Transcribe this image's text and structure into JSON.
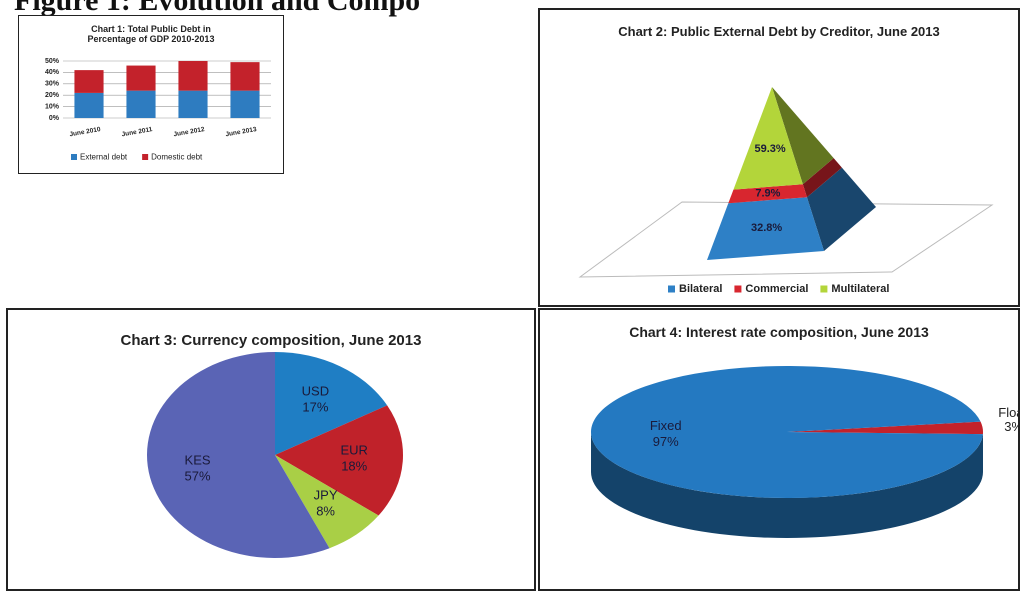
{
  "heading": "Figure 1: Evolution and Compo",
  "chart_data": [
    {
      "type": "bar",
      "stacked": true,
      "title": "Chart 1: Total Public Debt in Percentage of GDP 2010-2013",
      "categories": [
        "June 2010",
        "June 2011",
        "June 2012",
        "June 2013"
      ],
      "series": [
        {
          "name": "External debt",
          "color": "#2e7cc0",
          "values": [
            22,
            24,
            24,
            24
          ]
        },
        {
          "name": "Domestic debt",
          "color": "#c3222b",
          "values": [
            20,
            22,
            26,
            25
          ]
        }
      ],
      "ylim": [
        0,
        50
      ],
      "yticks": [
        {
          "value": 0,
          "label": "0%"
        },
        {
          "value": 10,
          "label": "10%"
        },
        {
          "value": 20,
          "label": "20%"
        },
        {
          "value": 30,
          "label": "30%"
        },
        {
          "value": 40,
          "label": "40%"
        },
        {
          "value": 50,
          "label": "50%"
        }
      ],
      "grid": true,
      "legend": "bottom"
    },
    {
      "type": "pyramid",
      "title": "Chart 2: Public External Debt by Creditor, June 2013",
      "categories": [
        "Bilateral",
        "Commercial",
        "Multilateral"
      ],
      "values": [
        32.8,
        7.9,
        59.3
      ],
      "value_labels": [
        "32.8%",
        "7.9%",
        "59.3%"
      ],
      "colors": [
        "#2e80c6",
        "#d8262f",
        "#b3d53a"
      ],
      "legend": "bottom"
    },
    {
      "type": "pie",
      "title": "Chart 3: Currency composition, June 2013",
      "categories": [
        "USD",
        "EUR",
        "JPY",
        "KES"
      ],
      "values": [
        17,
        18,
        8,
        57
      ],
      "value_labels": [
        "17%",
        "18%",
        "8%",
        "57%"
      ],
      "colors": [
        "#1f7ec4",
        "#c0222a",
        "#a9cf46",
        "#5a64b5"
      ]
    },
    {
      "type": "pie3d",
      "title": "Chart 4: Interest rate composition, June 2013",
      "categories": [
        "Floating",
        "Fixed"
      ],
      "values": [
        3,
        97
      ],
      "value_labels": [
        "3%",
        "97%"
      ],
      "colors": [
        "#c3222b",
        "#2479c1"
      ]
    }
  ]
}
